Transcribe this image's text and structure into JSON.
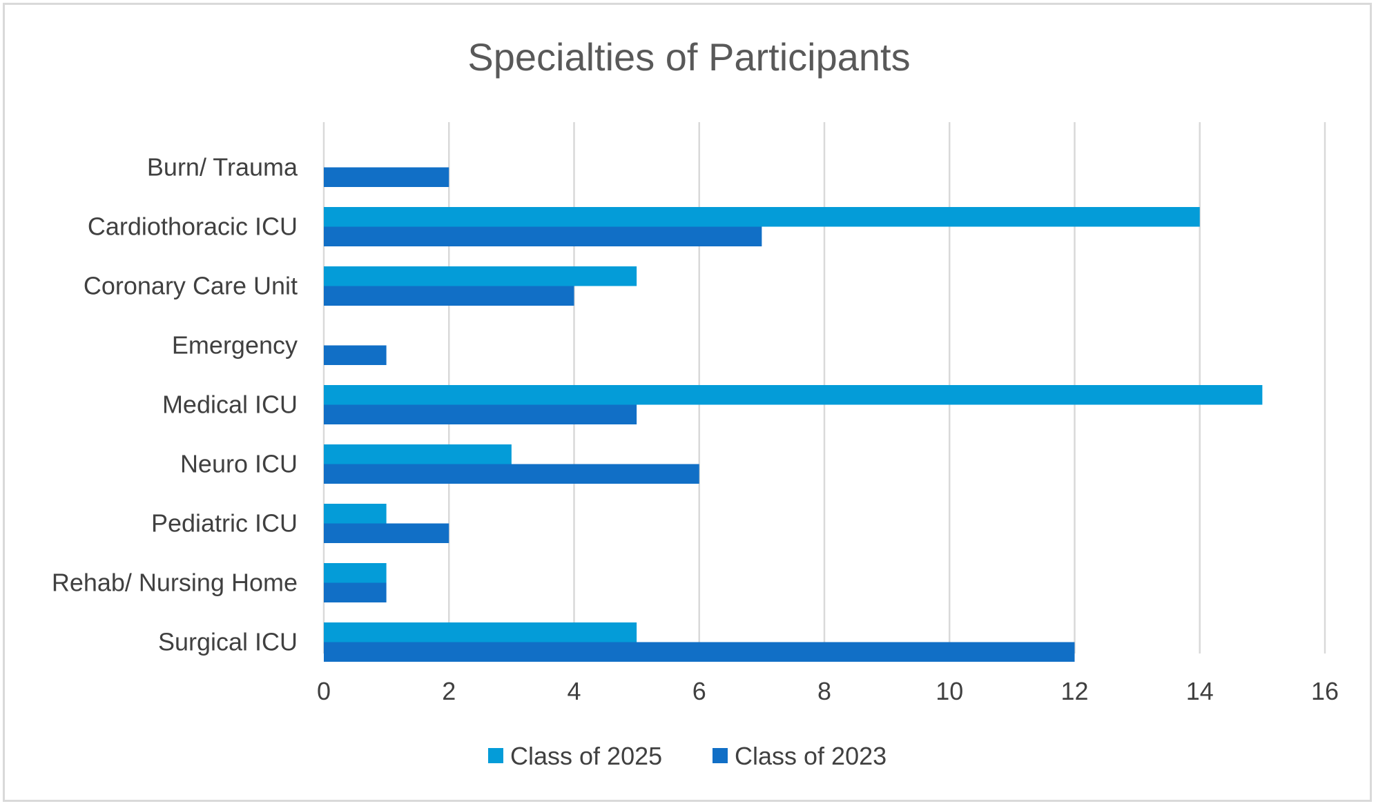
{
  "chart_data": {
    "type": "bar",
    "orientation": "horizontal",
    "title": "Specialties of Participants",
    "xlabel": "",
    "ylabel": "",
    "categories": [
      "Burn/ Trauma",
      "Cardiothoracic ICU",
      "Coronary Care Unit",
      "Emergency",
      "Medical ICU",
      "Neuro ICU",
      "Pediatric ICU",
      "Rehab/ Nursing Home",
      "Surgical ICU"
    ],
    "series": [
      {
        "name": "Class of 2025",
        "color": "#049cd8",
        "values": [
          0,
          14,
          5,
          0,
          15,
          3,
          1,
          1,
          5
        ]
      },
      {
        "name": "Class of 2023",
        "color": "#116fc6",
        "values": [
          2,
          7,
          4,
          1,
          5,
          6,
          2,
          1,
          12
        ]
      }
    ],
    "xlim": [
      0,
      16
    ],
    "xticks": [
      "0",
      "2",
      "4",
      "6",
      "8",
      "10",
      "12",
      "14",
      "16"
    ],
    "grid": true,
    "legend_position": "bottom"
  }
}
